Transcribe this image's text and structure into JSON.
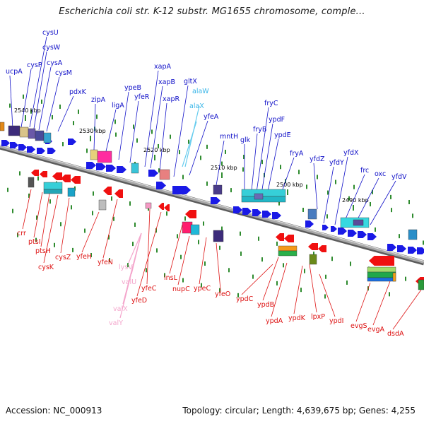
{
  "title": "Escherichia coli str. K-12 substr. MG1655 chromosome, comple...",
  "footer": {
    "accession": "Accession: NC_000913",
    "topology": "Topology: circular; Length: 4,639,675 bp; Genes: 4,255"
  },
  "colors": {
    "forward_label": "#1010c8",
    "reverse_label": "#dd1111",
    "rna_label_forward": "#3bb6e8",
    "rna_label_reverse": "#f4a6cc",
    "backbone": "#8a8a8a"
  },
  "scale_ticks": [
    "2540 kbp",
    "2530 kbp",
    "2520 kbp",
    "2510 kbp",
    "2500 kbp",
    "2490 kbp"
  ],
  "forward_labels": [
    "ucpA",
    "cysP",
    "cysU",
    "cysW",
    "cysA",
    "cysM",
    "pdxK",
    "zipA",
    "ligA",
    "ypeB",
    "yfeR",
    "xapA",
    "xapB",
    "xapR",
    "gltX",
    "alaW",
    "alaX",
    "yfeA",
    "mntH",
    "glk",
    "fryB",
    "fryC",
    "ypdF",
    "ypdE",
    "fryA",
    "yfdZ",
    "yfdY",
    "yfdX",
    "frc",
    "oxc",
    "yfdV"
  ],
  "reverse_labels": [
    "crr",
    "ptsI",
    "ptsH",
    "cysK",
    "cysZ",
    "yfeH",
    "yfeN",
    "lysV",
    "valU",
    "valX",
    "valY",
    "yfeC",
    "yfeD",
    "insL",
    "nupC",
    "ypeC",
    "yfeO",
    "ypdC",
    "ypdB",
    "ypdA",
    "ypdK",
    "lpxP",
    "ypdI",
    "evgS",
    "evgA",
    "dsdA"
  ]
}
